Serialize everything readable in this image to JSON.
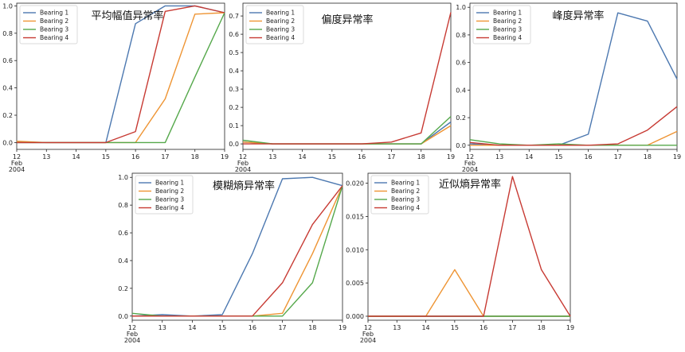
{
  "chart_data": [
    {
      "type": "line",
      "title": "平均幅值异常率",
      "x_ticks": [
        "12\nFeb\n2004",
        "13",
        "14",
        "15",
        "16",
        "17",
        "18",
        "19"
      ],
      "x": [
        12,
        13,
        14,
        15,
        16,
        17,
        18,
        19
      ],
      "ylim": [
        -0.05,
        1.02
      ],
      "y_ticks": [
        "0.0",
        "0.2",
        "0.4",
        "0.6",
        "0.8",
        "1.0"
      ],
      "y_tick_values": [
        0,
        0.2,
        0.4,
        0.6,
        0.8,
        1.0
      ],
      "legend": "top-left",
      "series": [
        {
          "name": "Bearing 1",
          "values": [
            0.0,
            0.0,
            0.0,
            0.0,
            0.87,
            1.0,
            1.0,
            0.95
          ]
        },
        {
          "name": "Bearing 2",
          "values": [
            0.01,
            0.0,
            0.0,
            0.0,
            0.0,
            0.32,
            0.94,
            0.95
          ]
        },
        {
          "name": "Bearing 3",
          "values": [
            0.0,
            0.0,
            0.0,
            0.0,
            0.0,
            0.0,
            0.48,
            0.95
          ]
        },
        {
          "name": "Bearing 4",
          "values": [
            0.0,
            0.0,
            0.0,
            0.0,
            0.08,
            0.96,
            1.0,
            0.95
          ]
        }
      ]
    },
    {
      "type": "line",
      "title": "偏度异常率",
      "x_ticks": [
        "12\nFeb\n2004",
        "13",
        "14",
        "15",
        "16",
        "17",
        "18",
        "19"
      ],
      "x": [
        12,
        13,
        14,
        15,
        16,
        17,
        18,
        19
      ],
      "ylim": [
        -0.03,
        0.77
      ],
      "y_ticks": [
        "0.0",
        "0.1",
        "0.2",
        "0.3",
        "0.4",
        "0.5",
        "0.6",
        "0.7"
      ],
      "y_tick_values": [
        0,
        0.1,
        0.2,
        0.3,
        0.4,
        0.5,
        0.6,
        0.7
      ],
      "legend": "top-left",
      "series": [
        {
          "name": "Bearing 1",
          "values": [
            0.01,
            0.0,
            0.0,
            0.0,
            0.0,
            0.0,
            0.0,
            0.12
          ]
        },
        {
          "name": "Bearing 2",
          "values": [
            0.01,
            0.0,
            0.0,
            0.0,
            0.0,
            0.0,
            0.0,
            0.1
          ]
        },
        {
          "name": "Bearing 3",
          "values": [
            0.02,
            0.0,
            0.0,
            0.0,
            0.0,
            0.0,
            0.0,
            0.15
          ]
        },
        {
          "name": "Bearing 4",
          "values": [
            0.0,
            0.0,
            0.0,
            0.0,
            0.0,
            0.01,
            0.06,
            0.72
          ]
        }
      ]
    },
    {
      "type": "line",
      "title": "峰度异常率",
      "x_ticks": [
        "12\nFeb\n2004",
        "13",
        "14",
        "15",
        "16",
        "17",
        "18",
        "19"
      ],
      "x": [
        12,
        13,
        14,
        15,
        16,
        17,
        18,
        19
      ],
      "ylim": [
        -0.03,
        1.03
      ],
      "y_ticks": [
        "0.0",
        "0.2",
        "0.4",
        "0.6",
        "0.8",
        "1.0"
      ],
      "y_tick_values": [
        0,
        0.2,
        0.4,
        0.6,
        0.8,
        1.0
      ],
      "legend": "top-left",
      "series": [
        {
          "name": "Bearing 1",
          "values": [
            0.01,
            0.0,
            0.0,
            0.0,
            0.08,
            0.96,
            0.9,
            0.48
          ]
        },
        {
          "name": "Bearing 2",
          "values": [
            0.0,
            0.0,
            0.0,
            0.0,
            0.0,
            0.0,
            0.0,
            0.1
          ]
        },
        {
          "name": "Bearing 3",
          "values": [
            0.04,
            0.01,
            0.0,
            0.01,
            0.0,
            0.0,
            0.0,
            0.0
          ]
        },
        {
          "name": "Bearing 4",
          "values": [
            0.02,
            0.0,
            0.0,
            0.0,
            0.0,
            0.01,
            0.11,
            0.28
          ]
        }
      ]
    },
    {
      "type": "line",
      "title": "模糊熵异常率",
      "x_ticks": [
        "12\nFeb\n2004",
        "13",
        "14",
        "15",
        "16",
        "17",
        "18",
        "19"
      ],
      "x": [
        12,
        13,
        14,
        15,
        16,
        17,
        18,
        19
      ],
      "ylim": [
        -0.03,
        1.03
      ],
      "y_ticks": [
        "0.0",
        "0.2",
        "0.4",
        "0.6",
        "0.8",
        "1.0"
      ],
      "y_tick_values": [
        0,
        0.2,
        0.4,
        0.6,
        0.8,
        1.0
      ],
      "legend": "top-left",
      "series": [
        {
          "name": "Bearing 1",
          "values": [
            0.0,
            0.01,
            0.0,
            0.01,
            0.45,
            0.99,
            1.0,
            0.94
          ]
        },
        {
          "name": "Bearing 2",
          "values": [
            0.0,
            0.0,
            0.0,
            0.0,
            0.0,
            0.02,
            0.45,
            0.94
          ]
        },
        {
          "name": "Bearing 3",
          "values": [
            0.02,
            0.0,
            0.0,
            0.0,
            0.0,
            0.0,
            0.24,
            0.94
          ]
        },
        {
          "name": "Bearing 4",
          "values": [
            0.0,
            0.0,
            0.0,
            0.0,
            0.0,
            0.24,
            0.66,
            0.94
          ]
        }
      ]
    },
    {
      "type": "line",
      "title": "近似熵异常率",
      "x_ticks": [
        "12\nFeb\n2004",
        "13",
        "14",
        "15",
        "16",
        "17",
        "18",
        "19"
      ],
      "x": [
        12,
        13,
        14,
        15,
        16,
        17,
        18,
        19
      ],
      "ylim": [
        -0.0006,
        0.0215
      ],
      "y_ticks": [
        "0.000",
        "0.005",
        "0.010",
        "0.015",
        "0.020"
      ],
      "y_tick_values": [
        0,
        0.005,
        0.01,
        0.015,
        0.02
      ],
      "legend": "top-left",
      "series": [
        {
          "name": "Bearing 1",
          "values": [
            0,
            0,
            0,
            0,
            0,
            0,
            0,
            0
          ]
        },
        {
          "name": "Bearing 2",
          "values": [
            0,
            0,
            0,
            0.007,
            0,
            0,
            0,
            0
          ]
        },
        {
          "name": "Bearing 3",
          "values": [
            0,
            0,
            0,
            0,
            0,
            0,
            0,
            0
          ]
        },
        {
          "name": "Bearing 4",
          "values": [
            0,
            0,
            0,
            0,
            0,
            0.021,
            0.007,
            0
          ]
        }
      ]
    }
  ],
  "colors": {
    "Bearing 1": "#4c78b0",
    "Bearing 2": "#ee9433",
    "Bearing 3": "#55a84b",
    "Bearing 4": "#c73a33",
    "axis": "#222222"
  }
}
